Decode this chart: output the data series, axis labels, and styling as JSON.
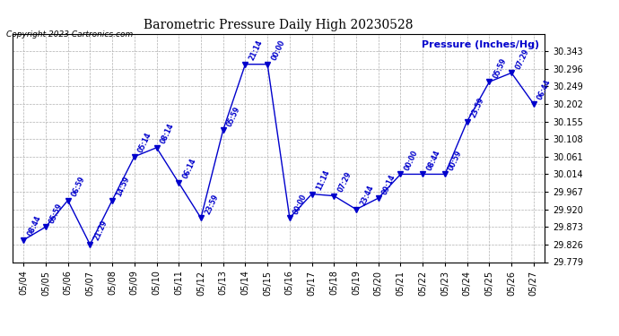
{
  "title": "Barometric Pressure Daily High 20230528",
  "ylabel": "Pressure (Inches/Hg)",
  "copyright": "Copyright 2023 Cartronics.com",
  "background_color": "#ffffff",
  "line_color": "#0000cc",
  "text_color": "#0000cc",
  "grid_color": "#b0b0b0",
  "title_color": "#000000",
  "dates": [
    "05/04",
    "05/05",
    "05/06",
    "05/07",
    "05/08",
    "05/09",
    "05/10",
    "05/11",
    "05/12",
    "05/13",
    "05/14",
    "05/15",
    "05/16",
    "05/17",
    "05/18",
    "05/19",
    "05/20",
    "05/21",
    "05/22",
    "05/23",
    "05/24",
    "05/25",
    "05/26",
    "05/27"
  ],
  "values": [
    29.838,
    29.873,
    29.944,
    29.826,
    29.944,
    30.061,
    30.085,
    29.991,
    29.897,
    30.132,
    30.308,
    30.308,
    29.897,
    29.961,
    29.956,
    29.92,
    29.95,
    30.014,
    30.014,
    30.014,
    30.155,
    30.261,
    30.285,
    30.202
  ],
  "times": [
    "08:44",
    "05:59",
    "06:59",
    "21:29",
    "14:59",
    "05:14",
    "08:14",
    "06:14",
    "23:59",
    "05:59",
    "21:14",
    "00:00",
    "00:00",
    "11:14",
    "07:29",
    "23:44",
    "09:14",
    "00:00",
    "08:44",
    "00:59",
    "23:59",
    "05:59",
    "07:29",
    "06:44"
  ],
  "ylim_min": 29.779,
  "ylim_max": 30.39,
  "yticks": [
    29.779,
    29.826,
    29.873,
    29.92,
    29.967,
    30.014,
    30.061,
    30.108,
    30.155,
    30.202,
    30.249,
    30.296,
    30.343
  ],
  "marker_size": 4,
  "figwidth": 6.9,
  "figheight": 3.75,
  "dpi": 100
}
